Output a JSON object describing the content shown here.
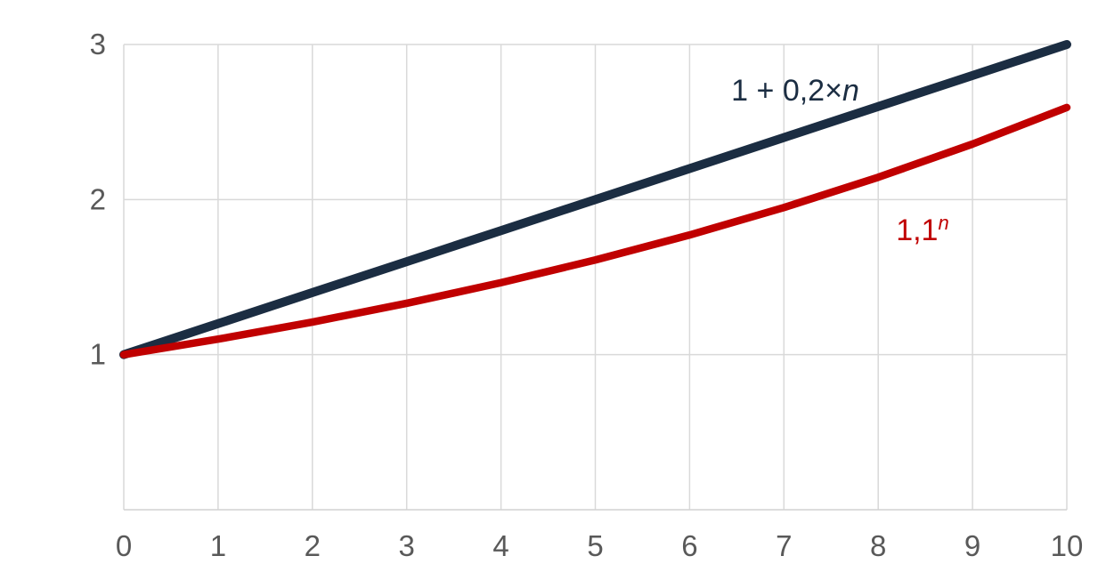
{
  "page": {
    "background_color": "#ffffff"
  },
  "chart_data": {
    "type": "line",
    "title": "",
    "xlabel": "",
    "ylabel": "",
    "xlim": [
      0,
      10
    ],
    "ylim": [
      0,
      3
    ],
    "x_ticks": [
      0,
      1,
      2,
      3,
      4,
      5,
      6,
      7,
      8,
      9,
      10
    ],
    "y_ticks": [
      1,
      2,
      3
    ],
    "grid": true,
    "gridline_color": "#d9d9d9",
    "axis_line_color": "#d2d2d2",
    "tick_label_color": "#595959",
    "legend_position": "inline-labels",
    "x": [
      0,
      1,
      2,
      3,
      4,
      5,
      6,
      7,
      8,
      9,
      10
    ],
    "series": [
      {
        "name": "1 + 0,2×n",
        "color": "#1b2d42",
        "line_width": 10,
        "values": [
          1,
          1.2,
          1.4,
          1.6,
          1.8,
          2.0,
          2.2,
          2.4,
          2.6,
          2.8,
          3.0
        ],
        "label": {
          "prefix": "1 + 0,2×",
          "var": "n",
          "var_italic": true,
          "superscript": false,
          "at_x": 7.12,
          "at_y": 2.639
        }
      },
      {
        "name": "1,1^n",
        "color": "#c00000",
        "line_width": 8.5,
        "values": [
          1,
          1.1,
          1.21,
          1.331,
          1.4641,
          1.6105,
          1.7716,
          1.9487,
          2.1436,
          2.3579,
          2.5937
        ],
        "label": {
          "prefix": "1,1",
          "var": "n",
          "var_italic": true,
          "superscript": true,
          "at_x": 8.47,
          "at_y": 1.738
        }
      }
    ],
    "tick_font_size": 33,
    "label_font_size": 34
  }
}
